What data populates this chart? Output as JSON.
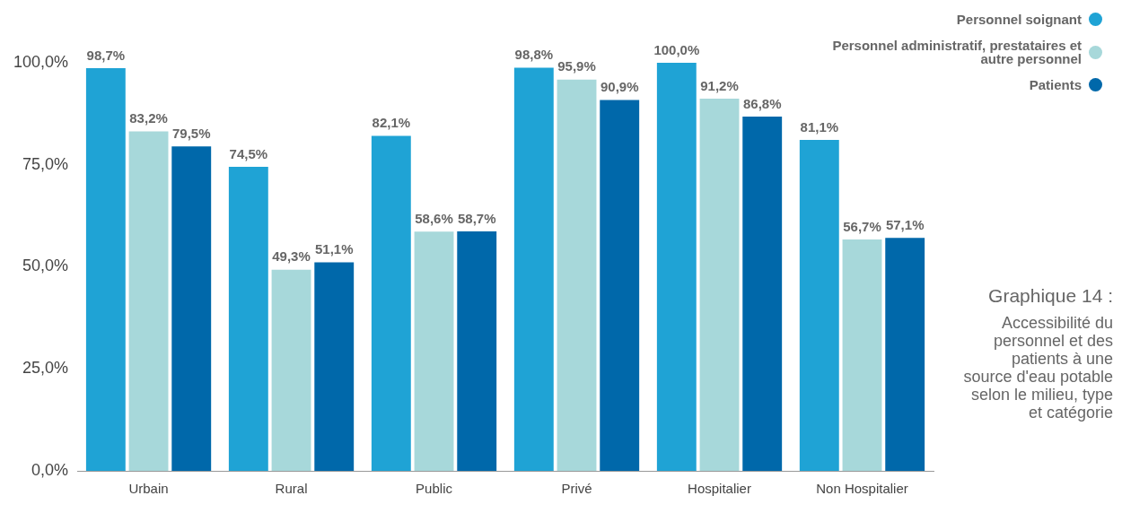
{
  "chart_data": {
    "type": "bar",
    "title": "Graphique 14 :",
    "subtitle": "Accessibilité du personnel et des patients à une source d'eau potable selon le milieu, type et catégorie",
    "categories": [
      "Urbain",
      "Rural",
      "Public",
      "Privé",
      "Hospitalier",
      "Non Hospitalier"
    ],
    "series": [
      {
        "name": "Personnel soignant",
        "color": "#1fa3d5",
        "values": [
          98.7,
          74.5,
          82.1,
          98.8,
          100.0,
          81.1
        ],
        "value_labels": [
          "98,7%",
          "74,5%",
          "82,1%",
          "98,8%",
          "100,0%",
          "81,1%"
        ]
      },
      {
        "name": "Personnel administratif, prestataires et autre personnel",
        "color": "#a7d8da",
        "values": [
          83.2,
          49.3,
          58.6,
          95.9,
          91.2,
          56.7
        ],
        "value_labels": [
          "83,2%",
          "49,3%",
          "58,6%",
          "95,9%",
          "91,2%",
          "56,7%"
        ]
      },
      {
        "name": "Patients",
        "color": "#0068aa",
        "values": [
          79.5,
          51.1,
          58.7,
          90.9,
          86.8,
          57.1
        ],
        "value_labels": [
          "79,5%",
          "51,1%",
          "58,7%",
          "90,9%",
          "86,8%",
          "57,1%"
        ]
      }
    ],
    "ylim": [
      0,
      100
    ],
    "yticks": [
      {
        "value": 0,
        "label": "0,0%"
      },
      {
        "value": 25,
        "label": "25,0%"
      },
      {
        "value": 50,
        "label": "50,0%"
      },
      {
        "value": 75,
        "label": "75,0%"
      },
      {
        "value": 100,
        "label": "100,0%"
      }
    ],
    "legend": "top right"
  }
}
